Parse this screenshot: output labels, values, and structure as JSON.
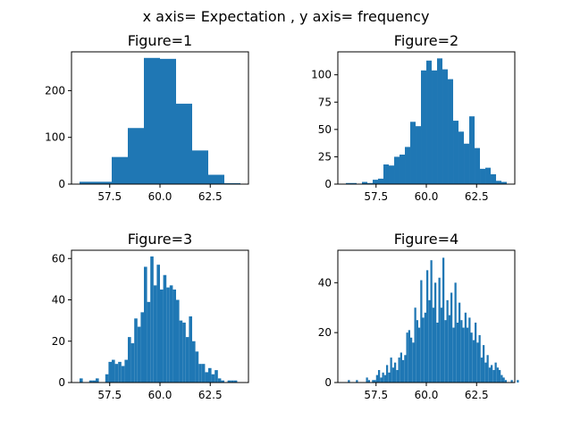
{
  "suptitle": "x axis= Expectation , y axis= frequency",
  "colors": {
    "bar": "#1f77b4",
    "axis": "#000000",
    "background": "#ffffff"
  },
  "chart_data": [
    {
      "type": "bar",
      "title": "Figure=1",
      "xlabel": "",
      "ylabel": "",
      "xlim": [
        55.6,
        64.4
      ],
      "ylim": [
        0,
        283
      ],
      "xticks": [
        57.5,
        60.0,
        62.5
      ],
      "xtick_labels": [
        "57.5",
        "60.0",
        "62.5"
      ],
      "yticks": [
        0,
        100,
        200
      ],
      "ytick_labels": [
        "0",
        "100",
        "200"
      ],
      "bin_start": 56.0,
      "bin_width": 0.8,
      "values": [
        5,
        5,
        58,
        120,
        270,
        268,
        172,
        72,
        20,
        2
      ]
    },
    {
      "type": "bar",
      "title": "Figure=2",
      "xlabel": "",
      "ylabel": "",
      "xlim": [
        55.6,
        64.4
      ],
      "ylim": [
        0,
        121
      ],
      "xticks": [
        57.5,
        60.0,
        62.5
      ],
      "xtick_labels": [
        "57.5",
        "60.0",
        "62.5"
      ],
      "yticks": [
        0,
        25,
        50,
        75,
        100
      ],
      "ytick_labels": [
        "0",
        "25",
        "50",
        "75",
        "100"
      ],
      "bin_start": 56.0,
      "bin_width": 0.2667,
      "values": [
        1,
        1,
        0,
        2,
        1,
        4,
        5,
        18,
        17,
        25,
        27,
        34,
        57,
        53,
        104,
        113,
        104,
        115,
        105,
        96,
        58,
        48,
        37,
        62,
        33,
        14,
        15,
        9,
        3,
        2
      ]
    },
    {
      "type": "bar",
      "title": "Figure=3",
      "xlabel": "",
      "ylabel": "",
      "xlim": [
        55.6,
        64.4
      ],
      "ylim": [
        0,
        64
      ],
      "xticks": [
        57.5,
        60.0,
        62.5
      ],
      "xtick_labels": [
        "57.5",
        "60.0",
        "62.5"
      ],
      "yticks": [
        0,
        20,
        40,
        60
      ],
      "ytick_labels": [
        "0",
        "20",
        "40",
        "60"
      ],
      "bin_start": 56.0,
      "bin_width": 0.16,
      "values": [
        2,
        0,
        0,
        1,
        1,
        2,
        0,
        0,
        4,
        10,
        11,
        9,
        10,
        8,
        11,
        22,
        19,
        31,
        27,
        34,
        56,
        39,
        61,
        47,
        57,
        45,
        52,
        46,
        47,
        45,
        40,
        30,
        29,
        22,
        32,
        20,
        15,
        9,
        9,
        5,
        7,
        4,
        6,
        2,
        1,
        0,
        1,
        1,
        1,
        0
      ]
    },
    {
      "type": "bar",
      "title": "Figure=4",
      "xlabel": "",
      "ylabel": "",
      "xlim": [
        55.6,
        64.4
      ],
      "ylim": [
        0,
        53
      ],
      "xticks": [
        57.5,
        60.0,
        62.5
      ],
      "xtick_labels": [
        "57.5",
        "60.0",
        "62.5"
      ],
      "yticks": [
        0,
        20,
        40
      ],
      "ytick_labels": [
        "0",
        "20",
        "40"
      ],
      "bin_start": 56.0,
      "bin_width": 0.1,
      "values": [
        0,
        1,
        0,
        0,
        0,
        1,
        0,
        0,
        0,
        0,
        2,
        1,
        0,
        1,
        1,
        3,
        5,
        2,
        4,
        3,
        7,
        4,
        10,
        6,
        8,
        5,
        10,
        12,
        9,
        11,
        20,
        21,
        18,
        16,
        30,
        25,
        22,
        41,
        26,
        28,
        45,
        33,
        49,
        30,
        40,
        24,
        42,
        30,
        50,
        25,
        33,
        27,
        36,
        22,
        40,
        24,
        32,
        25,
        22,
        28,
        22,
        26,
        20,
        17,
        24,
        16,
        19,
        10,
        15,
        8,
        11,
        6,
        7,
        5,
        8,
        6,
        5,
        3,
        2,
        1,
        0,
        0,
        1,
        0,
        0,
        1,
        0,
        0,
        0,
        0
      ]
    }
  ]
}
